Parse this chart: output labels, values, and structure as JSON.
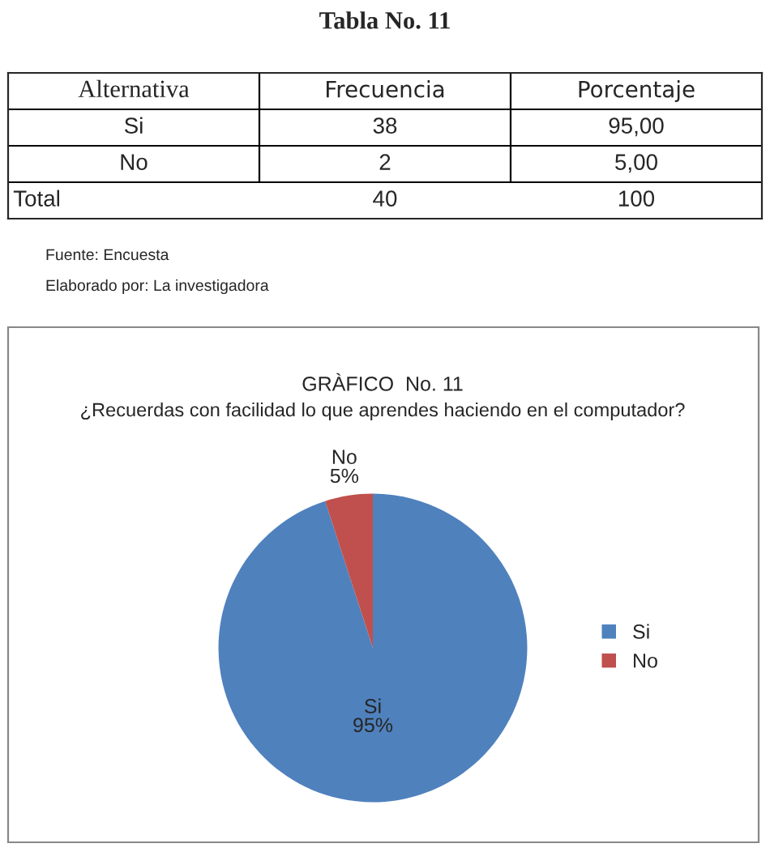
{
  "chart_data": [
    {
      "type": "other",
      "title": "Tabla No. 11",
      "categories": [
        "Alternativa",
        "Frecuencia",
        "Porcentaje"
      ],
      "y_categories": [
        "Si",
        "No",
        "Total"
      ],
      "cell_labels": [
        [
          "38",
          "95,00"
        ],
        [
          "2",
          "5,00"
        ],
        [
          "40",
          "100"
        ]
      ],
      "annotations": [
        "Fuente: Encuesta",
        "Elaborado por: La investigadora"
      ]
    },
    {
      "type": "pie",
      "title": "GRÀFICO  No. 11",
      "subtitle": "¿Recuerdas con facilidad lo que aprendes haciendo en el computador?",
      "categories": [
        "Si",
        "No"
      ],
      "values": [
        95,
        5
      ],
      "colors": [
        "#4f81bd",
        "#c0504d"
      ],
      "value_labels": [
        "Si\n95%",
        "No\n5%"
      ],
      "legend": "right"
    }
  ]
}
